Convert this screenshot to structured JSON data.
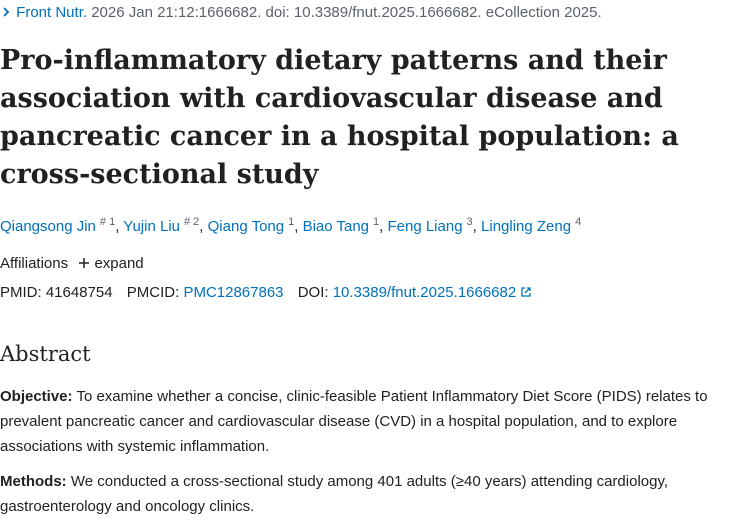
{
  "citation": {
    "journal": "Front Nutr.",
    "details": "2026 Jan 21:12:1666682. doi: 10.3389/fnut.2025.1666682. eCollection 2025."
  },
  "title": "Pro-inflammatory dietary patterns and their association with cardiovascular disease and pancreatic cancer in a hospital population: a cross-sectional study",
  "authors": {
    "separator": ",",
    "list": [
      {
        "name": "Qiangsong Jin",
        "sup": "# 1"
      },
      {
        "name": "Yujin Liu",
        "sup": "# 2"
      },
      {
        "name": "Qiang Tong",
        "sup": "1"
      },
      {
        "name": "Biao Tang",
        "sup": "1"
      },
      {
        "name": "Feng Liang",
        "sup": "3"
      },
      {
        "name": "Lingling Zeng",
        "sup": "4"
      }
    ]
  },
  "affiliations": {
    "label": "Affiliations",
    "toggle": "expand"
  },
  "ids": {
    "pmid_label": "PMID:",
    "pmid": "41648754",
    "pmcid_label": "PMCID:",
    "pmcid": "PMC12867863",
    "doi_label": "DOI:",
    "doi": "10.3389/fnut.2025.1666682"
  },
  "abstract": {
    "heading": "Abstract",
    "sections": [
      {
        "label": "Objective:",
        "text": "To examine whether a concise, clinic-feasible Patient Inflammatory Diet Score (PIDS) relates to prevalent pancreatic cancer and cardiovascular disease (CVD) in a hospital population, and to explore associations with systemic inflammation."
      },
      {
        "label": "Methods:",
        "text": "We conducted a cross-sectional study among 401 adults (≥40 years) attending cardiology, gastroenterology and oncology clinics."
      }
    ]
  }
}
